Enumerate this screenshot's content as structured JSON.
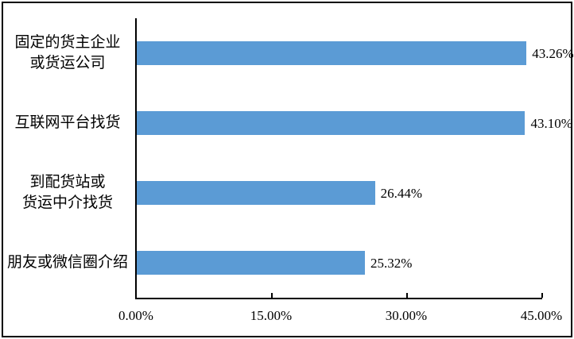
{
  "chart_data": {
    "type": "bar",
    "orientation": "horizontal",
    "title": "",
    "xlabel": "",
    "ylabel": "",
    "categories": [
      "固定的货主企业\n或货运公司",
      "互联网平台找货",
      "到配货站或\n货运中介找货",
      "朋友或微信圈介绍"
    ],
    "values": [
      43.26,
      43.1,
      26.44,
      25.32
    ],
    "value_labels": [
      "43.26%",
      "43.10%",
      "26.44%",
      "25.32%"
    ],
    "x_ticks": [
      {
        "value": 0,
        "label": "0.00%"
      },
      {
        "value": 15,
        "label": "15.00%"
      },
      {
        "value": 30,
        "label": "30.00%"
      },
      {
        "value": 45,
        "label": "45.00%"
      }
    ],
    "xlim": [
      0,
      45
    ],
    "grid": false,
    "legend": false,
    "bar_color": "#5B9BD5",
    "axis_color": "#000000",
    "text_color": "#000000",
    "frame_color": "#000000",
    "background_color": "#FFFFFF"
  }
}
